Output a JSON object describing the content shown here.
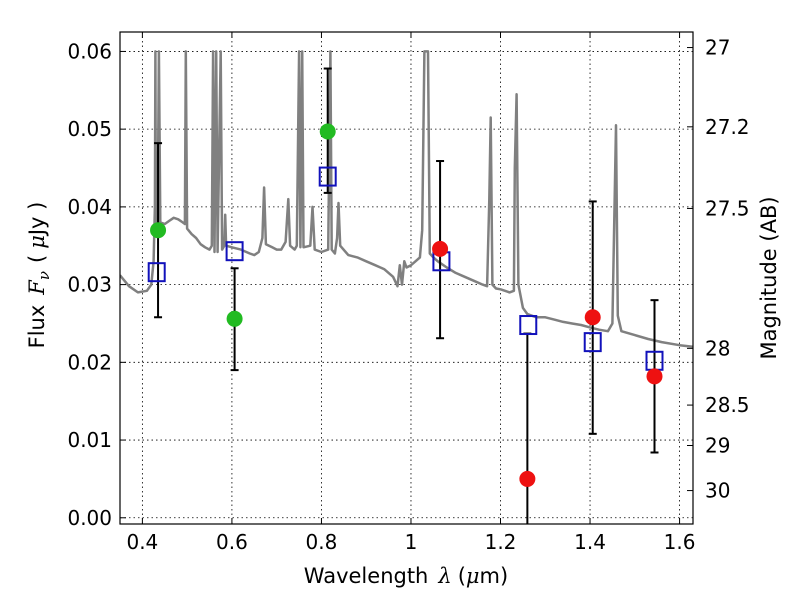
{
  "chart_data": {
    "type": "scatter",
    "xlabel_text": "Wavelength",
    "xlabel_symbol": "λ",
    "xlabel_unit_open": "(",
    "xlabel_unit_mu": "μ",
    "xlabel_unit_rest": "m)",
    "ylabel_text": "Flux",
    "ylabel_symbol": "F",
    "ylabel_sub": "ν",
    "ylabel_unit_open": "(",
    "ylabel_unit_mu": "μ",
    "ylabel_unit_rest": "Jy )",
    "y2label": "Magnitude (AB)",
    "xlim": [
      0.35,
      1.63
    ],
    "ylim": [
      -0.0008,
      0.0625
    ],
    "grid": true,
    "colors": {
      "model": "#808080",
      "green": "#22bb22",
      "red": "#ee1111",
      "box": "#1111bb",
      "error": "#000000"
    },
    "x_ticks": [
      {
        "value": 0.4,
        "label": "0.4"
      },
      {
        "value": 0.6,
        "label": "0.6"
      },
      {
        "value": 0.8,
        "label": "0.8"
      },
      {
        "value": 1.0,
        "label": "1"
      },
      {
        "value": 1.2,
        "label": "1.2"
      },
      {
        "value": 1.4,
        "label": "1.4"
      },
      {
        "value": 1.6,
        "label": "1.6"
      }
    ],
    "y_ticks": [
      {
        "value": 0.0,
        "label": "0.00"
      },
      {
        "value": 0.01,
        "label": "0.01"
      },
      {
        "value": 0.02,
        "label": "0.02"
      },
      {
        "value": 0.03,
        "label": "0.03"
      },
      {
        "value": 0.04,
        "label": "0.04"
      },
      {
        "value": 0.05,
        "label": "0.05"
      },
      {
        "value": 0.06,
        "label": "0.06"
      }
    ],
    "y2_ticks": [
      {
        "flux": 0.0605,
        "label": "27"
      },
      {
        "flux": 0.0503,
        "label": "27.2"
      },
      {
        "flux": 0.0398,
        "label": "27.5"
      },
      {
        "flux": 0.0218,
        "label": "28"
      },
      {
        "flux": 0.0145,
        "label": "28.5"
      },
      {
        "flux": 0.0093,
        "label": "29"
      },
      {
        "flux": 0.0035,
        "label": "30"
      }
    ],
    "model_spectrum": [
      [
        0.35,
        0.0312
      ],
      [
        0.37,
        0.0298
      ],
      [
        0.39,
        0.029
      ],
      [
        0.41,
        0.0292
      ],
      [
        0.42,
        0.03
      ],
      [
        0.425,
        0.033
      ],
      [
        0.428,
        0.04
      ],
      [
        0.429,
        0.06
      ],
      [
        0.43,
        0.04
      ],
      [
        0.434,
        0.037
      ],
      [
        0.437,
        0.06
      ],
      [
        0.44,
        0.038
      ],
      [
        0.45,
        0.0378
      ],
      [
        0.46,
        0.0382
      ],
      [
        0.47,
        0.0386
      ],
      [
        0.48,
        0.0384
      ],
      [
        0.49,
        0.038
      ],
      [
        0.495,
        0.0378
      ],
      [
        0.497,
        0.06
      ],
      [
        0.5,
        0.0372
      ],
      [
        0.51,
        0.0365
      ],
      [
        0.52,
        0.036
      ],
      [
        0.53,
        0.0352
      ],
      [
        0.54,
        0.0348
      ],
      [
        0.55,
        0.0345
      ],
      [
        0.555,
        0.035
      ],
      [
        0.558,
        0.06
      ],
      [
        0.561,
        0.0342
      ],
      [
        0.565,
        0.06
      ],
      [
        0.568,
        0.0342
      ],
      [
        0.575,
        0.06
      ],
      [
        0.578,
        0.0345
      ],
      [
        0.583,
        0.035
      ],
      [
        0.585,
        0.039
      ],
      [
        0.587,
        0.035
      ],
      [
        0.6,
        0.0348
      ],
      [
        0.62,
        0.0345
      ],
      [
        0.64,
        0.034
      ],
      [
        0.65,
        0.0338
      ],
      [
        0.66,
        0.0342
      ],
      [
        0.668,
        0.036
      ],
      [
        0.672,
        0.0425
      ],
      [
        0.676,
        0.0352
      ],
      [
        0.69,
        0.0348
      ],
      [
        0.7,
        0.0345
      ],
      [
        0.71,
        0.0345
      ],
      [
        0.72,
        0.0355
      ],
      [
        0.726,
        0.041
      ],
      [
        0.73,
        0.035
      ],
      [
        0.74,
        0.0345
      ],
      [
        0.745,
        0.035
      ],
      [
        0.75,
        0.06
      ],
      [
        0.753,
        0.0348
      ],
      [
        0.757,
        0.06
      ],
      [
        0.76,
        0.0348
      ],
      [
        0.775,
        0.035
      ],
      [
        0.78,
        0.04
      ],
      [
        0.785,
        0.0345
      ],
      [
        0.8,
        0.0342
      ],
      [
        0.815,
        0.0345
      ],
      [
        0.82,
        0.06
      ],
      [
        0.823,
        0.0345
      ],
      [
        0.83,
        0.034
      ],
      [
        0.835,
        0.036
      ],
      [
        0.838,
        0.0405
      ],
      [
        0.842,
        0.035
      ],
      [
        0.86,
        0.0338
      ],
      [
        0.88,
        0.0335
      ],
      [
        0.9,
        0.033
      ],
      [
        0.92,
        0.0325
      ],
      [
        0.94,
        0.032
      ],
      [
        0.96,
        0.031
      ],
      [
        0.97,
        0.0298
      ],
      [
        0.975,
        0.0325
      ],
      [
        0.98,
        0.03
      ],
      [
        0.985,
        0.033
      ],
      [
        0.99,
        0.0322
      ],
      [
        1.0,
        0.0325
      ],
      [
        1.01,
        0.033
      ],
      [
        1.02,
        0.0335
      ],
      [
        1.025,
        0.037
      ],
      [
        1.03,
        0.06
      ],
      [
        1.038,
        0.06
      ],
      [
        1.042,
        0.034
      ],
      [
        1.05,
        0.0335
      ],
      [
        1.06,
        0.033
      ],
      [
        1.08,
        0.0322
      ],
      [
        1.1,
        0.0315
      ],
      [
        1.12,
        0.031
      ],
      [
        1.14,
        0.0305
      ],
      [
        1.16,
        0.03
      ],
      [
        1.17,
        0.0298
      ],
      [
        1.175,
        0.041
      ],
      [
        1.178,
        0.0515
      ],
      [
        1.182,
        0.03
      ],
      [
        1.19,
        0.0295
      ],
      [
        1.2,
        0.0294
      ],
      [
        1.21,
        0.0292
      ],
      [
        1.22,
        0.029
      ],
      [
        1.23,
        0.0292
      ],
      [
        1.232,
        0.045
      ],
      [
        1.236,
        0.0545
      ],
      [
        1.24,
        0.03
      ],
      [
        1.25,
        0.027
      ],
      [
        1.26,
        0.0262
      ],
      [
        1.28,
        0.0258
      ],
      [
        1.3,
        0.0258
      ],
      [
        1.32,
        0.0255
      ],
      [
        1.34,
        0.0252
      ],
      [
        1.36,
        0.025
      ],
      [
        1.38,
        0.0248
      ],
      [
        1.4,
        0.0245
      ],
      [
        1.42,
        0.0242
      ],
      [
        1.44,
        0.024
      ],
      [
        1.45,
        0.025
      ],
      [
        1.458,
        0.0505
      ],
      [
        1.462,
        0.026
      ],
      [
        1.47,
        0.024
      ],
      [
        1.5,
        0.0235
      ],
      [
        1.53,
        0.023
      ],
      [
        1.56,
        0.0226
      ],
      [
        1.6,
        0.0222
      ],
      [
        1.63,
        0.022
      ]
    ],
    "series": [
      {
        "marker": "circle",
        "points": [
          {
            "x": 0.435,
            "y": 0.037,
            "err_lo": 0.0258,
            "err_hi": 0.0482,
            "color": "green"
          },
          {
            "x": 0.606,
            "y": 0.0256,
            "err_lo": 0.019,
            "err_hi": 0.0321,
            "color": "green"
          },
          {
            "x": 0.814,
            "y": 0.0497,
            "err_lo": 0.0418,
            "err_hi": 0.0578,
            "color": "green"
          },
          {
            "x": 1.065,
            "y": 0.0346,
            "err_lo": 0.0231,
            "err_hi": 0.0459,
            "color": "red"
          },
          {
            "x": 1.26,
            "y": 0.005,
            "err_lo": -0.001,
            "err_hi": 0.0237,
            "color": "red"
          },
          {
            "x": 1.406,
            "y": 0.0258,
            "err_lo": 0.0108,
            "err_hi": 0.0407,
            "color": "red"
          },
          {
            "x": 1.544,
            "y": 0.0182,
            "err_lo": 0.0084,
            "err_hi": 0.028,
            "color": "red"
          }
        ]
      },
      {
        "marker": "open-square",
        "points": [
          {
            "x": 0.432,
            "y": 0.0316
          },
          {
            "x": 0.606,
            "y": 0.0343
          },
          {
            "x": 0.814,
            "y": 0.0439
          },
          {
            "x": 1.068,
            "y": 0.033
          },
          {
            "x": 1.262,
            "y": 0.0248
          },
          {
            "x": 1.406,
            "y": 0.0226
          },
          {
            "x": 1.544,
            "y": 0.0202
          }
        ]
      }
    ]
  }
}
